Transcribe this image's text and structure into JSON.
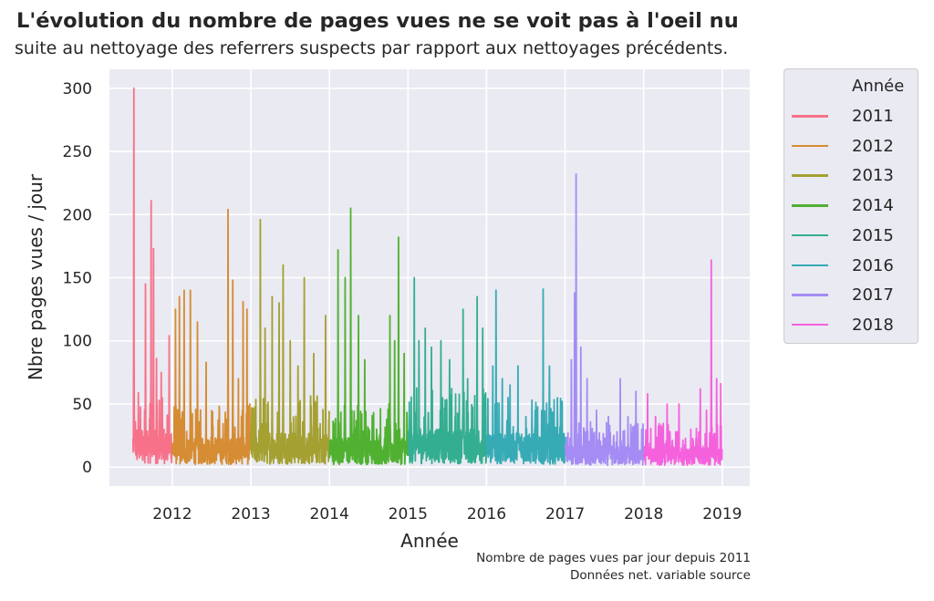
{
  "header": {
    "title": "L'évolution du nombre de pages vues ne se voit pas à l'oeil nu",
    "subtitle": "suite au nettoyage des referrers suspects par rapport aux nettoyages précédents."
  },
  "caption": {
    "line1": "Nombre de pages vues par jour depuis 2011",
    "line2": "Données net. variable source"
  },
  "chart_data": {
    "type": "line",
    "xlabel": "Année",
    "ylabel": "Nbre pages vues / jour",
    "xlim": [
      2011.2,
      2019.35
    ],
    "ylim": [
      -15,
      315
    ],
    "xticks": [
      2012,
      2013,
      2014,
      2015,
      2016,
      2017,
      2018,
      2019
    ],
    "yticks": [
      0,
      50,
      100,
      150,
      200,
      250,
      300
    ],
    "grid": true,
    "legend": {
      "title": "Année",
      "placement": "outside-right"
    },
    "series": [
      {
        "name": "2011",
        "color": "#f77189",
        "x_start": 2011.5,
        "x_end": 2012.0,
        "baseline": 18,
        "peaks": [
          [
            2011.51,
            300
          ],
          [
            2011.53,
            36
          ],
          [
            2011.66,
            145
          ],
          [
            2011.73,
            211
          ],
          [
            2011.76,
            173
          ],
          [
            2011.8,
            86
          ],
          [
            2011.86,
            75
          ],
          [
            2011.96,
            104
          ]
        ]
      },
      {
        "name": "2012",
        "color": "#d58c32",
        "x_start": 2012.0,
        "x_end": 2013.0,
        "baseline": 14,
        "peaks": [
          [
            2012.04,
            125
          ],
          [
            2012.09,
            135
          ],
          [
            2012.15,
            140
          ],
          [
            2012.23,
            140
          ],
          [
            2012.32,
            115
          ],
          [
            2012.43,
            83
          ],
          [
            2012.6,
            40
          ],
          [
            2012.71,
            204
          ],
          [
            2012.77,
            148
          ],
          [
            2012.84,
            70
          ],
          [
            2012.9,
            131
          ],
          [
            2012.95,
            125
          ]
        ]
      },
      {
        "name": "2013",
        "color": "#a4a031",
        "x_start": 2013.0,
        "x_end": 2014.0,
        "baseline": 16,
        "peaks": [
          [
            2013.12,
            196
          ],
          [
            2013.18,
            110
          ],
          [
            2013.27,
            135
          ],
          [
            2013.36,
            130
          ],
          [
            2013.41,
            160
          ],
          [
            2013.5,
            100
          ],
          [
            2013.6,
            80
          ],
          [
            2013.68,
            150
          ],
          [
            2013.8,
            90
          ],
          [
            2013.95,
            120
          ]
        ]
      },
      {
        "name": "2014",
        "color": "#50b131",
        "x_start": 2014.0,
        "x_end": 2015.0,
        "baseline": 14,
        "peaks": [
          [
            2014.11,
            172
          ],
          [
            2014.2,
            150
          ],
          [
            2014.27,
            205
          ],
          [
            2014.37,
            120
          ],
          [
            2014.45,
            85
          ],
          [
            2014.6,
            30
          ],
          [
            2014.77,
            120
          ],
          [
            2014.83,
            100
          ],
          [
            2014.88,
            182
          ],
          [
            2014.95,
            90
          ]
        ]
      },
      {
        "name": "2015",
        "color": "#34ae91",
        "x_start": 2015.0,
        "x_end": 2016.0,
        "baseline": 18,
        "peaks": [
          [
            2015.08,
            150
          ],
          [
            2015.14,
            100
          ],
          [
            2015.22,
            110
          ],
          [
            2015.3,
            95
          ],
          [
            2015.42,
            100
          ],
          [
            2015.53,
            85
          ],
          [
            2015.6,
            40
          ],
          [
            2015.7,
            125
          ],
          [
            2015.76,
            70
          ],
          [
            2015.88,
            135
          ],
          [
            2015.95,
            110
          ]
        ]
      },
      {
        "name": "2016",
        "color": "#37abb5",
        "x_start": 2016.0,
        "x_end": 2017.0,
        "baseline": 16,
        "peaks": [
          [
            2016.08,
            80
          ],
          [
            2016.12,
            140
          ],
          [
            2016.2,
            70
          ],
          [
            2016.3,
            65
          ],
          [
            2016.4,
            80
          ],
          [
            2016.5,
            40
          ],
          [
            2016.62,
            45
          ],
          [
            2016.72,
            141
          ],
          [
            2016.8,
            80
          ],
          [
            2016.9,
            55
          ]
        ]
      },
      {
        "name": "2017",
        "color": "#a48cf4",
        "x_start": 2017.0,
        "x_end": 2018.0,
        "baseline": 10,
        "peaks": [
          [
            2017.08,
            85
          ],
          [
            2017.12,
            138
          ],
          [
            2017.14,
            232
          ],
          [
            2017.2,
            95
          ],
          [
            2017.28,
            70
          ],
          [
            2017.4,
            45
          ],
          [
            2017.55,
            40
          ],
          [
            2017.7,
            70
          ],
          [
            2017.8,
            40
          ],
          [
            2017.9,
            60
          ]
        ]
      },
      {
        "name": "2018",
        "color": "#f561dd",
        "x_start": 2018.0,
        "x_end": 2019.0,
        "baseline": 10,
        "peaks": [
          [
            2018.05,
            58
          ],
          [
            2018.15,
            40
          ],
          [
            2018.3,
            50
          ],
          [
            2018.45,
            50
          ],
          [
            2018.6,
            30
          ],
          [
            2018.72,
            62
          ],
          [
            2018.8,
            45
          ],
          [
            2018.86,
            164
          ],
          [
            2018.93,
            70
          ],
          [
            2018.98,
            66
          ]
        ]
      }
    ]
  }
}
